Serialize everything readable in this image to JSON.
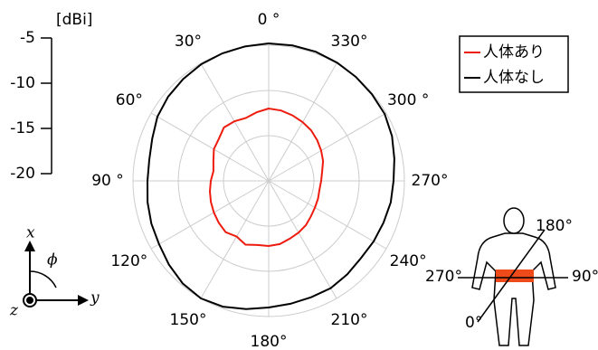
{
  "chart_data": {
    "type": "polar",
    "unit_label": "[dBi]",
    "theta": [
      0,
      10,
      20,
      30,
      40,
      50,
      60,
      70,
      80,
      90,
      100,
      110,
      120,
      130,
      140,
      150,
      160,
      170,
      180,
      190,
      200,
      210,
      220,
      230,
      240,
      250,
      260,
      270,
      280,
      290,
      300,
      310,
      320,
      330,
      340,
      350
    ],
    "series": [
      {
        "name": "人体あり",
        "color": "#ee1c0e",
        "values": [
          -12.0,
          -12.3,
          -12.6,
          -12.4,
          -12.3,
          -12.8,
          -13.0,
          -13.5,
          -13.8,
          -13.6,
          -13.4,
          -13.2,
          -13.0,
          -12.8,
          -12.6,
          -12.9,
          -12.5,
          -12.8,
          -12.8,
          -12.9,
          -13.2,
          -13.4,
          -13.6,
          -13.9,
          -14.1,
          -14.2,
          -14.3,
          -14.2,
          -14.0,
          -13.6,
          -13.3,
          -13.0,
          -12.7,
          -12.5,
          -12.3,
          -12.1
        ]
      },
      {
        "name": "人体なし",
        "color": "#000000",
        "values": [
          -4.8,
          -4.9,
          -5.0,
          -5.1,
          -5.3,
          -5.5,
          -5.8,
          -6.3,
          -6.6,
          -6.6,
          -6.4,
          -6.2,
          -6.0,
          -5.6,
          -5.2,
          -5.0,
          -5.2,
          -5.6,
          -6.0,
          -6.2,
          -6.3,
          -6.3,
          -6.5,
          -6.7,
          -6.6,
          -6.5,
          -6.3,
          -6.2,
          -5.9,
          -5.5,
          -5.2,
          -5.1,
          -5.0,
          -4.9,
          -4.8,
          -4.8
        ]
      }
    ],
    "rlim": [
      -20,
      -5
    ],
    "rticks": [
      -5,
      -10,
      -15,
      -20
    ],
    "thetaticks": [
      {
        "value": 0,
        "label": "0 °"
      },
      {
        "value": 30,
        "label": "30°"
      },
      {
        "value": 60,
        "label": "60°"
      },
      {
        "value": 90,
        "label": "90 °"
      },
      {
        "value": 120,
        "label": "120°"
      },
      {
        "value": 150,
        "label": "150°"
      },
      {
        "value": 180,
        "label": "180°"
      },
      {
        "value": 210,
        "label": "210°"
      },
      {
        "value": 240,
        "label": "240°"
      },
      {
        "value": 270,
        "label": "270°"
      },
      {
        "value": 300,
        "label": "300 °"
      },
      {
        "value": 330,
        "label": "330°"
      }
    ],
    "grid": true,
    "legend": "upper right"
  },
  "axes_icon": {
    "x": "x",
    "y": "y",
    "z": "z",
    "phi": "ϕ"
  },
  "body_inset": {
    "top": "180°",
    "left": "270°",
    "right": "90°",
    "bottom": "0°"
  }
}
